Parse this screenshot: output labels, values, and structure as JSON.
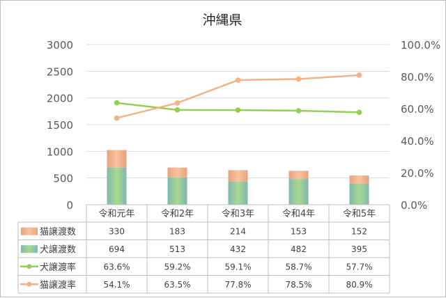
{
  "chart_data": {
    "type": "bar",
    "title": "沖縄県",
    "categories": [
      "令和元年",
      "令和2年",
      "令和3年",
      "令和4年",
      "令和5年"
    ],
    "y_left": {
      "min": 0,
      "max": 3000,
      "ticks": [
        "0",
        "500",
        "1000",
        "1500",
        "2000",
        "2500",
        "3000"
      ]
    },
    "y_right": {
      "min": 0,
      "max": 1.0,
      "ticks": [
        "0.0%",
        "20.0%",
        "40.0%",
        "60.0%",
        "80.0%",
        "100.0%"
      ]
    },
    "grid": true,
    "legend": "data-table",
    "series": [
      {
        "name": "猫譲渡数",
        "kind": "stacked-bar",
        "color": "#F4B183",
        "values": [
          330,
          183,
          214,
          153,
          152
        ],
        "labels": [
          "330",
          "183",
          "214",
          "153",
          "152"
        ]
      },
      {
        "name": "犬譲渡数",
        "kind": "stacked-bar",
        "color": "#8FCB8F",
        "values": [
          694,
          513,
          432,
          482,
          395
        ],
        "labels": [
          "694",
          "513",
          "432",
          "482",
          "395"
        ]
      },
      {
        "name": "犬譲渡率",
        "kind": "line",
        "axis": "right",
        "color": "#92D050",
        "values": [
          0.636,
          0.592,
          0.591,
          0.587,
          0.577
        ],
        "labels": [
          "63.6%",
          "59.2%",
          "59.1%",
          "58.7%",
          "57.7%"
        ]
      },
      {
        "name": "猫譲渡率",
        "kind": "line",
        "axis": "right",
        "color": "#F4B183",
        "values": [
          0.541,
          0.635,
          0.778,
          0.785,
          0.809
        ],
        "labels": [
          "54.1%",
          "63.5%",
          "77.8%",
          "78.5%",
          "80.9%"
        ]
      }
    ]
  }
}
